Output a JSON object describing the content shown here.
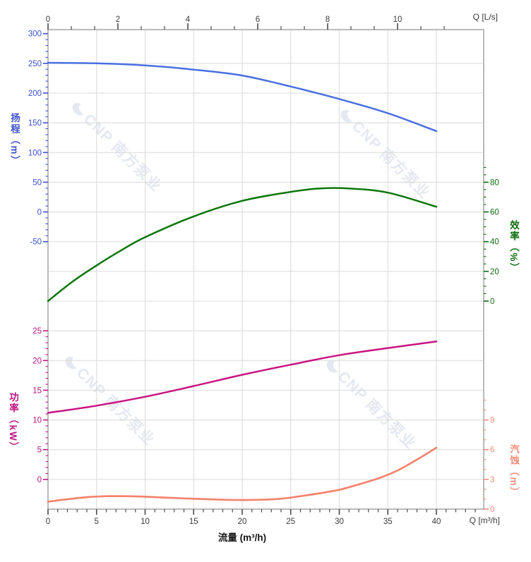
{
  "watermark": {
    "text": "CNP 南方泵业"
  },
  "chart_data": {
    "type": "line",
    "title": "",
    "grid": true,
    "x_axis_bottom": {
      "title": "流量 (m³/h)",
      "corner_label": "Q [m³/h]",
      "unit": "m³/h",
      "range": [
        0,
        44.9
      ],
      "major_ticks": [
        0,
        5,
        10,
        15,
        20,
        25,
        30,
        35,
        40
      ],
      "minor_step": 1
    },
    "x_axis_top": {
      "corner_label": "Q [L/s]",
      "unit": "L/s",
      "range": [
        0,
        12.47
      ],
      "major_ticks": [
        0,
        2,
        4,
        6,
        8,
        10
      ],
      "minor_step": 0.6667
    },
    "y_axes": [
      {
        "id": "head",
        "title": "扬程（m）",
        "unit": "m",
        "side": "left",
        "color": "#3c50ce",
        "major_ticks": [
          300,
          250,
          200,
          150,
          100,
          50,
          0,
          -50
        ],
        "minor_step": 10,
        "minor_range": [
          -50,
          300
        ],
        "range": [
          -160,
          300
        ]
      },
      {
        "id": "efficiency",
        "title": "效率（%）",
        "unit": "%",
        "side": "right",
        "color": "#0d6d0d",
        "major_ticks": [
          80,
          60,
          40,
          20,
          0
        ],
        "minor_step": 5,
        "minor_range": [
          0,
          90
        ],
        "range": [
          0,
          90
        ]
      },
      {
        "id": "power",
        "title": "功率（kW）",
        "unit": "kW",
        "side": "left",
        "color": "#c11484",
        "major_ticks": [
          25,
          20,
          15,
          10,
          5,
          0
        ],
        "minor_step": 1,
        "minor_range": [
          0,
          25
        ],
        "range": [
          0,
          30
        ]
      },
      {
        "id": "npsh",
        "title": "汽蚀（m）",
        "unit": "m",
        "side": "right",
        "color": "#f68b76",
        "major_ticks": [
          9,
          6,
          3,
          0
        ],
        "minor_step": 1,
        "minor_range": [
          0,
          11
        ],
        "range": [
          0,
          12
        ]
      }
    ],
    "series": [
      {
        "name": "head",
        "axis": "head",
        "color": "#4a70e2",
        "width": 2.5,
        "points": [
          [
            0,
            251
          ],
          [
            5,
            250
          ],
          [
            10,
            246.5
          ],
          [
            15,
            239.5
          ],
          [
            20,
            229.5
          ],
          [
            25,
            211
          ],
          [
            30,
            190
          ],
          [
            35,
            166
          ],
          [
            40,
            136
          ]
        ]
      },
      {
        "name": "efficiency",
        "axis": "efficiency",
        "color": "#0a760a",
        "width": 2.5,
        "points": [
          [
            0,
            0
          ],
          [
            2.5,
            13
          ],
          [
            5,
            24
          ],
          [
            7.5,
            34
          ],
          [
            10,
            43
          ],
          [
            15,
            57
          ],
          [
            20,
            67.5
          ],
          [
            25,
            73.5
          ],
          [
            28,
            75.8
          ],
          [
            31,
            75.8
          ],
          [
            35,
            73
          ],
          [
            40,
            63.5
          ]
        ]
      },
      {
        "name": "power",
        "axis": "power",
        "color": "#ca1480",
        "width": 2.5,
        "points": [
          [
            0,
            11.2
          ],
          [
            5,
            12.4
          ],
          [
            10,
            13.9
          ],
          [
            15,
            15.7
          ],
          [
            20,
            17.6
          ],
          [
            25,
            19.3
          ],
          [
            30,
            20.9
          ],
          [
            35,
            22.1
          ],
          [
            40,
            23.2
          ]
        ]
      },
      {
        "name": "npsh",
        "axis": "npsh",
        "color": "#f4836d",
        "width": 2.7,
        "points": [
          [
            0,
            0.75
          ],
          [
            2,
            1.0
          ],
          [
            4,
            1.2
          ],
          [
            6,
            1.3
          ],
          [
            8,
            1.3
          ],
          [
            10,
            1.25
          ],
          [
            14,
            1.08
          ],
          [
            18,
            0.95
          ],
          [
            20,
            0.92
          ],
          [
            22,
            0.95
          ],
          [
            24,
            1.05
          ],
          [
            26,
            1.3
          ],
          [
            28,
            1.6
          ],
          [
            30,
            1.95
          ],
          [
            32,
            2.5
          ],
          [
            34,
            3.1
          ],
          [
            36,
            3.9
          ],
          [
            38,
            5.0
          ],
          [
            40,
            6.2
          ]
        ]
      }
    ]
  }
}
